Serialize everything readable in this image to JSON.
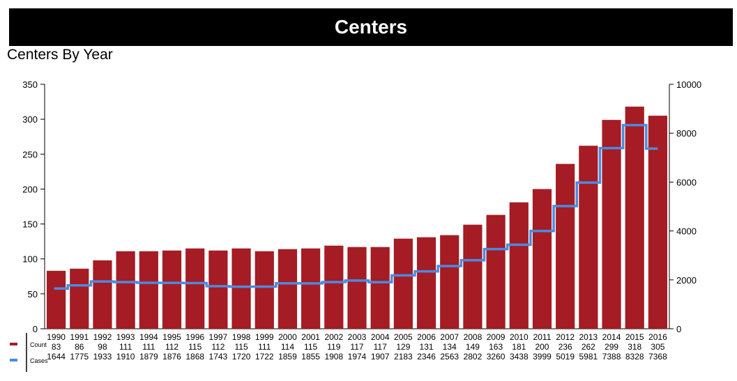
{
  "header": {
    "title": "Centers"
  },
  "chart_title": "Centers By Year",
  "chart_data": {
    "type": "bar",
    "categories": [
      "1990",
      "1991",
      "1992",
      "1993",
      "1994",
      "1995",
      "1996",
      "1997",
      "1998",
      "1999",
      "2000",
      "2001",
      "2002",
      "2003",
      "2004",
      "2005",
      "2006",
      "2007",
      "2008",
      "2009",
      "2010",
      "2011",
      "2012",
      "2013",
      "2014",
      "2015",
      "2016"
    ],
    "series": [
      {
        "name": "Count",
        "type": "bar",
        "axis": "left",
        "color": "#a51c24",
        "values": [
          83,
          86,
          98,
          111,
          111,
          112,
          115,
          112,
          115,
          111,
          114,
          115,
          119,
          117,
          117,
          129,
          131,
          134,
          149,
          163,
          181,
          200,
          236,
          262,
          299,
          318,
          305
        ]
      },
      {
        "name": "Cases",
        "type": "line",
        "axis": "right",
        "color": "#4a8ae0",
        "values": [
          1644,
          1775,
          1933,
          1910,
          1879,
          1876,
          1868,
          1743,
          1720,
          1722,
          1859,
          1855,
          1908,
          1974,
          1907,
          2183,
          2346,
          2563,
          2802,
          3260,
          3438,
          3999,
          5019,
          5981,
          7388,
          8328,
          7368
        ]
      }
    ],
    "y_left": {
      "min": 0,
      "max": 350,
      "ticks": [
        0,
        50,
        100,
        150,
        200,
        250,
        300,
        350
      ]
    },
    "y_right": {
      "min": 0,
      "max": 10000,
      "ticks": [
        0,
        2000,
        4000,
        6000,
        8000,
        10000
      ]
    },
    "grid": false,
    "legend": "bottom-left"
  }
}
